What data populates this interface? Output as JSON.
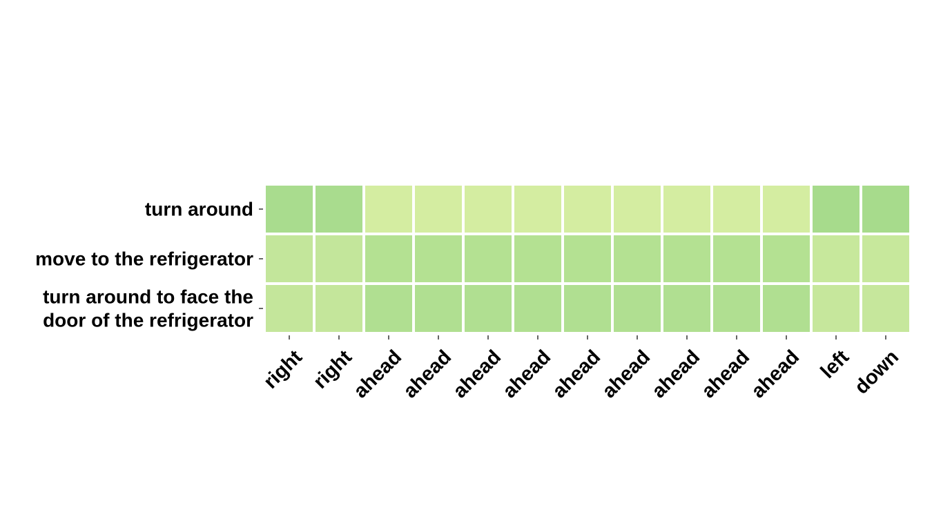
{
  "chart_data": {
    "type": "heatmap",
    "title": "",
    "xlabel": "",
    "ylabel": "",
    "x_tick_labels": [
      "right",
      "right",
      "ahead",
      "ahead",
      "ahead",
      "ahead",
      "ahead",
      "ahead",
      "ahead",
      "ahead",
      "ahead",
      "left",
      "down"
    ],
    "y_tick_labels": [
      [
        "turn around"
      ],
      [
        "move to the refrigerator"
      ],
      [
        "turn around to face the",
        "door of the refrigerator"
      ]
    ],
    "cell_colors": [
      [
        "#a9dc8e",
        "#a9dc8e",
        "#d4eda1",
        "#d4eda1",
        "#d4eda1",
        "#d4eda1",
        "#d4eda1",
        "#d4eda1",
        "#d4eda1",
        "#d4eda1",
        "#d4eda1",
        "#a7db8c",
        "#a7db8c"
      ],
      [
        "#c3e69b",
        "#c3e69b",
        "#b4e192",
        "#b4e192",
        "#b4e192",
        "#b4e192",
        "#b4e192",
        "#b4e192",
        "#b4e192",
        "#b4e192",
        "#b4e192",
        "#c7e89c",
        "#c7e89c"
      ],
      [
        "#c4e69b",
        "#c4e69b",
        "#b0df91",
        "#b0df91",
        "#b0df91",
        "#b0df91",
        "#b0df91",
        "#b0df91",
        "#b0df91",
        "#b0df91",
        "#b0df91",
        "#c6e79c",
        "#c6e79c"
      ]
    ],
    "grid": false,
    "legend": "none",
    "colorbar": "none"
  }
}
